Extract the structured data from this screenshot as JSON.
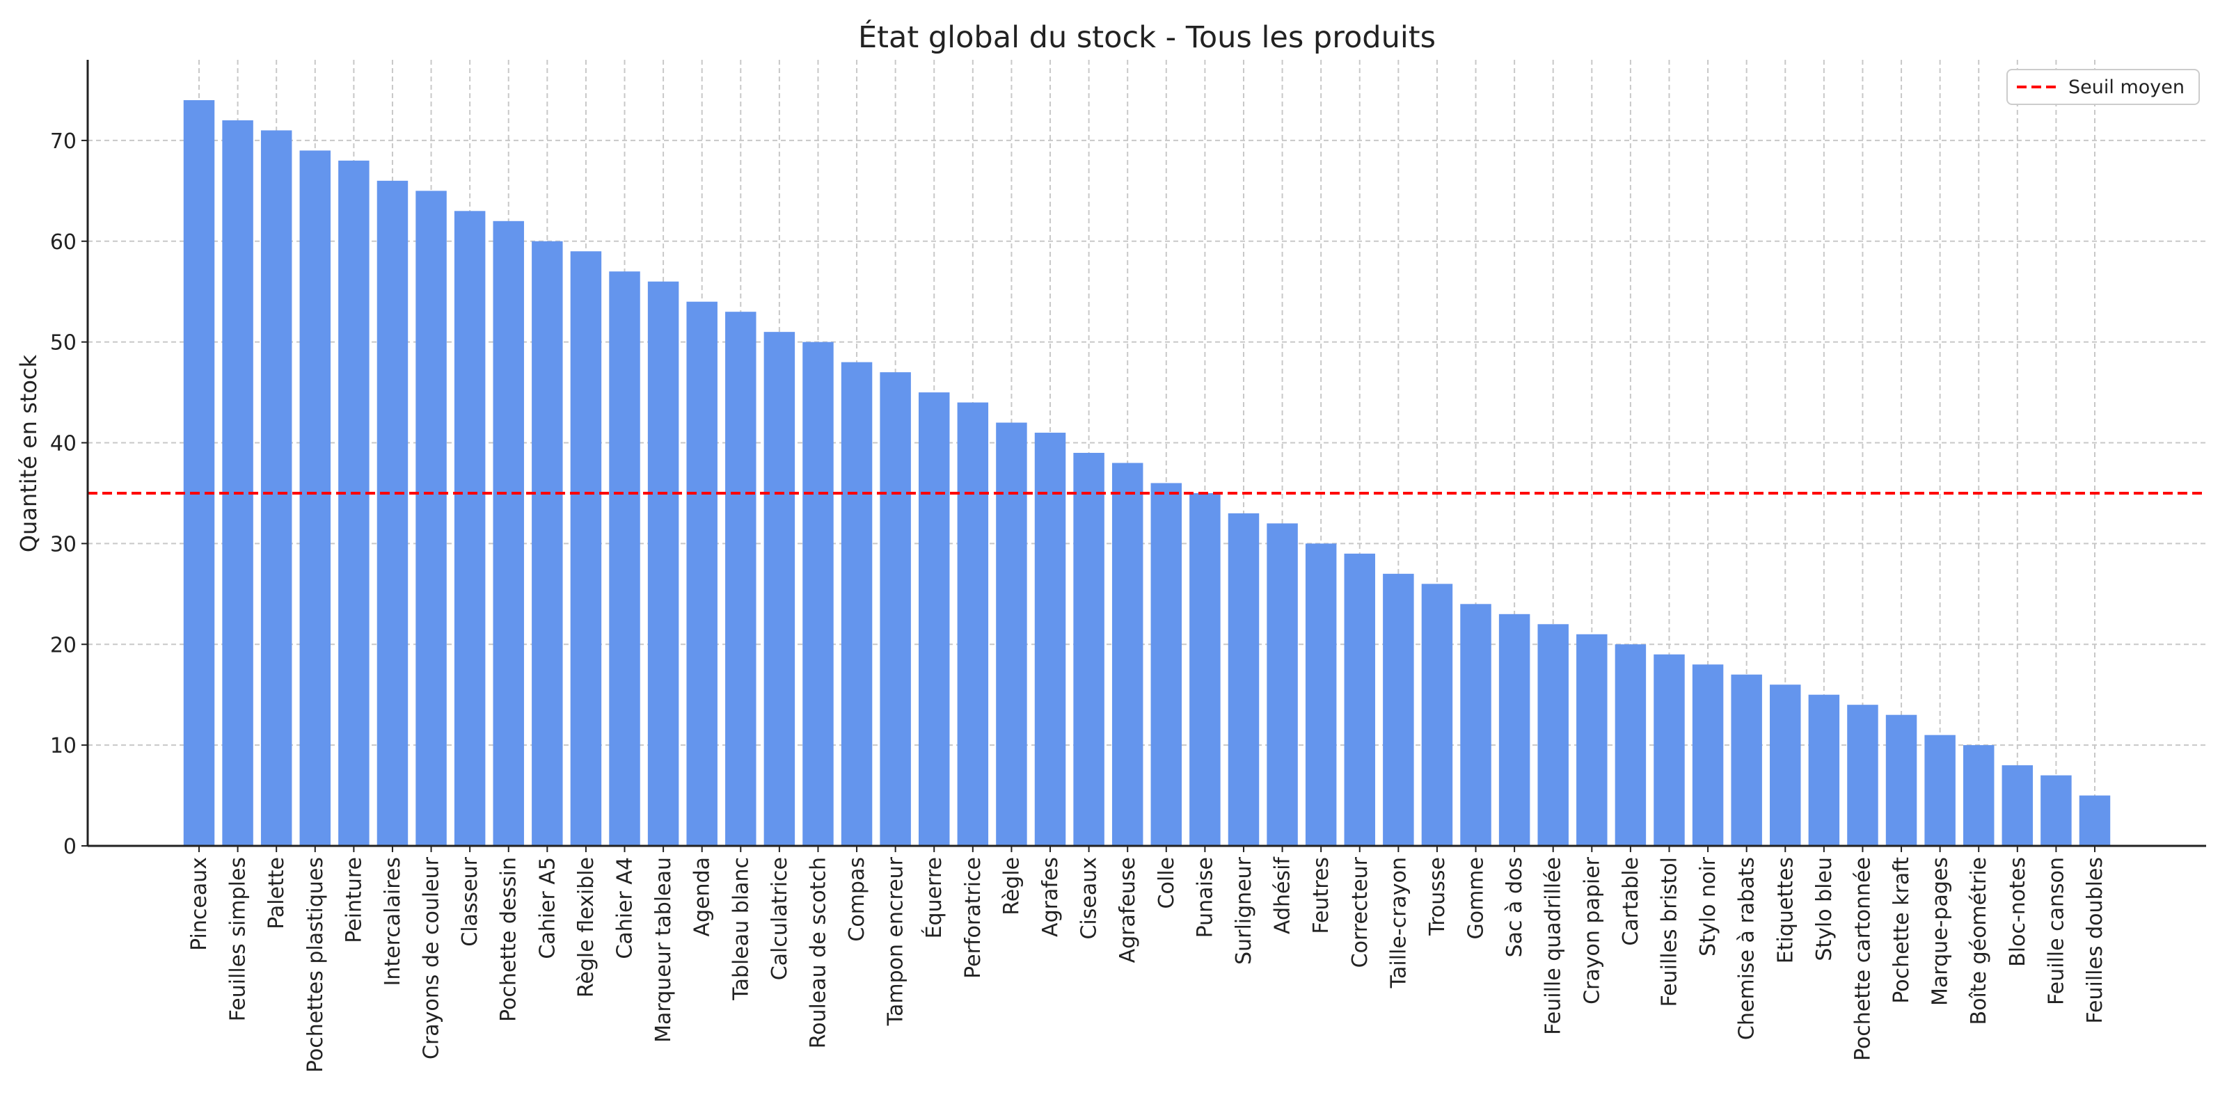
{
  "chart_data": {
    "type": "bar",
    "title": "État global du stock - Tous les produits",
    "xlabel": "",
    "ylabel": "Quantité en stock",
    "ylim": [
      0,
      78
    ],
    "yticks": [
      0,
      10,
      20,
      30,
      40,
      50,
      60,
      70
    ],
    "grid": true,
    "legend_position": "top-right",
    "bar_color": "#6495ED",
    "threshold": {
      "name": "Seuil moyen",
      "value": 35,
      "color": "#ff0000",
      "style": "dashed"
    },
    "categories": [
      "Pinceaux",
      "Feuilles simples",
      "Palette",
      "Pochettes plastiques",
      "Peinture",
      "Intercalaires",
      "Crayons de couleur",
      "Classeur",
      "Pochette dessin",
      "Cahier A5",
      "Règle flexible",
      "Cahier A4",
      "Marqueur tableau",
      "Agenda",
      "Tableau blanc",
      "Calculatrice",
      "Rouleau de scotch",
      "Compas",
      "Tampon encreur",
      "Équerre",
      "Perforatrice",
      "Règle",
      "Agrafes",
      "Ciseaux",
      "Agrafeuse",
      "Colle",
      "Punaise",
      "Surligneur",
      "Adhésif",
      "Feutres",
      "Correcteur",
      "Taille-crayon",
      "Trousse",
      "Gomme",
      "Sac à dos",
      "Feuille quadrillée",
      "Crayon papier",
      "Cartable",
      "Feuilles bristol",
      "Stylo noir",
      "Chemise à rabats",
      "Etiquettes",
      "Stylo bleu",
      "Pochette cartonnée",
      "Pochette kraft",
      "Marque-pages",
      "Boîte géométrie",
      "Bloc-notes",
      "Feuille canson",
      "Feuilles doubles"
    ],
    "values": [
      74,
      72,
      71,
      69,
      68,
      66,
      65,
      63,
      62,
      60,
      59,
      57,
      56,
      54,
      53,
      51,
      50,
      48,
      47,
      45,
      44,
      42,
      41,
      39,
      38,
      36,
      35,
      33,
      32,
      30,
      29,
      27,
      26,
      24,
      23,
      22,
      21,
      20,
      19,
      18,
      17,
      16,
      15,
      14,
      13,
      11,
      10,
      8,
      7,
      5
    ]
  }
}
